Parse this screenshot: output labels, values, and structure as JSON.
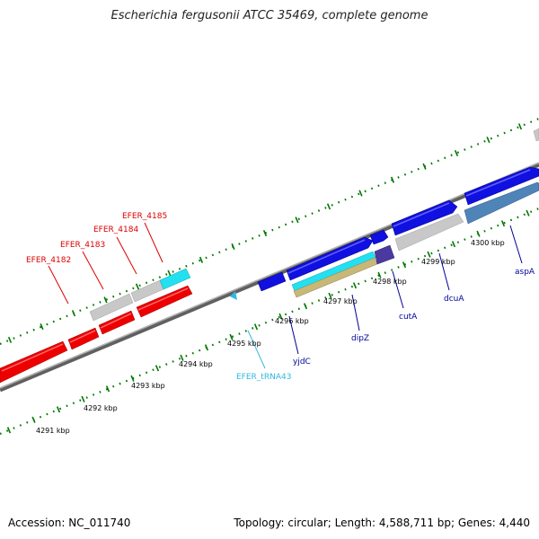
{
  "title": "Escherichia fergusonii ATCC 35469, complete genome",
  "footer": {
    "accession": "Accession: NC_011740",
    "summary": "Topology: circular; Length: 4,588,711 bp; Genes: 4,440"
  },
  "colors": {
    "cds_red": "#ee0000",
    "cds_blue": "#1010e0",
    "gene_gray": "#c8c8c8",
    "gene_cyan": "#22e0f0",
    "gene_tan": "#c8b878",
    "gene_steel": "#4f84b8",
    "gene_purple": "#4a3aa0",
    "trna_cyan": "#30b8e0",
    "tick_green": "#007700",
    "backbone": "#808080",
    "label_red": "#dd0000",
    "label_blue": "#000099",
    "label_cyan": "#30b8e0"
  },
  "scale_labels": [
    {
      "text": "4291 kbp"
    },
    {
      "text": "4292 kbp"
    },
    {
      "text": "4293 kbp"
    },
    {
      "text": "4294 kbp"
    },
    {
      "text": "4295 kbp"
    },
    {
      "text": "4296 kbp"
    },
    {
      "text": "4297 kbp"
    },
    {
      "text": "4298 kbp"
    },
    {
      "text": "4299 kbp"
    },
    {
      "text": "4300 kbp"
    }
  ],
  "gene_labels": [
    {
      "text": "EFER_4182"
    },
    {
      "text": "EFER_4183"
    },
    {
      "text": "EFER_4184"
    },
    {
      "text": "EFER_4185"
    },
    {
      "text": "EFER_tRNA43"
    },
    {
      "text": "yjdC"
    },
    {
      "text": "dipZ"
    },
    {
      "text": "cutA"
    },
    {
      "text": "dcuA"
    },
    {
      "text": "aspA"
    }
  ]
}
